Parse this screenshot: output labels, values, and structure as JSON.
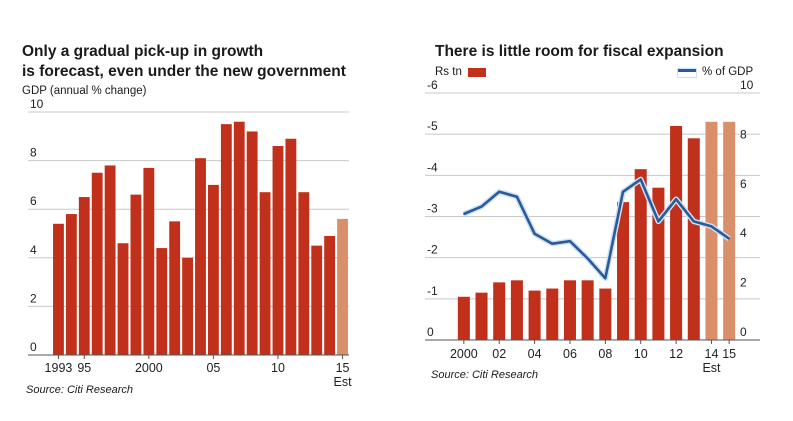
{
  "chart_data": [
    {
      "type": "bar",
      "title": "Only a gradual pick-up in growth is forecast, even under the new government",
      "title_lines": [
        "Only a gradual pick-up in growth",
        "is forecast, even under the new government"
      ],
      "ylabel": "GDP (annual % change)",
      "ylim": [
        0,
        10
      ],
      "yticks": [
        0,
        2,
        4,
        6,
        8,
        10
      ],
      "grid": true,
      "categories": [
        "1993",
        "1994",
        "1995",
        "1996",
        "1997",
        "1998",
        "1999",
        "2000",
        "2001",
        "2002",
        "2003",
        "2004",
        "2005",
        "2006",
        "2007",
        "2008",
        "2009",
        "2010",
        "2011",
        "2012",
        "2013",
        "2014",
        "2015"
      ],
      "values": [
        5.4,
        5.8,
        6.5,
        7.5,
        7.8,
        4.6,
        6.6,
        7.7,
        4.4,
        5.5,
        4.0,
        8.1,
        7.0,
        9.5,
        9.6,
        9.2,
        6.7,
        8.6,
        8.9,
        6.7,
        4.5,
        4.9,
        5.6
      ],
      "estimate_from": "2015",
      "xtick_labels": [
        {
          "category": "1993",
          "label": "1993"
        },
        {
          "category": "1995",
          "label": "95"
        },
        {
          "category": "2000",
          "label": "2000"
        },
        {
          "category": "2005",
          "label": "05"
        },
        {
          "category": "2010",
          "label": "10"
        },
        {
          "category": "2015",
          "label": "15"
        }
      ],
      "est_label": "Est",
      "source": "Source: Citi Research"
    },
    {
      "type": "bar",
      "title": "There is little room for fiscal expansion",
      "ylim_left": [
        0,
        -6
      ],
      "yticks_left": [
        "0",
        "-1",
        "-2",
        "-3",
        "-4",
        "-5",
        "-6"
      ],
      "ylim_right": [
        0,
        10
      ],
      "yticks_right": [
        0,
        2,
        4,
        6,
        8,
        10
      ],
      "grid": true,
      "categories": [
        "2000",
        "2001",
        "2002",
        "2003",
        "2004",
        "2005",
        "2006",
        "2007",
        "2008",
        "2009",
        "2010",
        "2011",
        "2012",
        "2013",
        "2014",
        "2015"
      ],
      "series": [
        {
          "name": "Rs tn",
          "type": "bar",
          "axis": "left",
          "values": [
            -1.05,
            -1.15,
            -1.4,
            -1.45,
            -1.2,
            -1.25,
            -1.45,
            -1.45,
            -1.25,
            -3.35,
            -4.15,
            -3.7,
            -5.2,
            -4.9,
            -5.3,
            -5.3
          ]
        },
        {
          "name": "% of GDP",
          "type": "line",
          "axis": "right",
          "values": [
            5.1,
            5.4,
            6.0,
            5.8,
            4.3,
            3.9,
            4.0,
            3.3,
            2.5,
            6.0,
            6.5,
            4.8,
            5.7,
            4.8,
            4.6,
            4.1
          ]
        }
      ],
      "estimate_from": "2014",
      "xtick_labels": [
        {
          "category": "2000",
          "label": "2000"
        },
        {
          "category": "2002",
          "label": "02"
        },
        {
          "category": "2004",
          "label": "04"
        },
        {
          "category": "2006",
          "label": "06"
        },
        {
          "category": "2008",
          "label": "08"
        },
        {
          "category": "2010",
          "label": "10"
        },
        {
          "category": "2012",
          "label": "12"
        },
        {
          "category": "2014",
          "label": "14"
        },
        {
          "category": "2015",
          "label": "15"
        }
      ],
      "est_label": "Est",
      "legend": "top",
      "source": "Source: Citi Research"
    }
  ],
  "colors": {
    "bar": "#c0301a",
    "bar_estimate": "#d9906a",
    "line": "#2a5a9a",
    "line_halo": "#cfe0f2",
    "grid": "#c8c8c8",
    "axis": "#555555"
  }
}
